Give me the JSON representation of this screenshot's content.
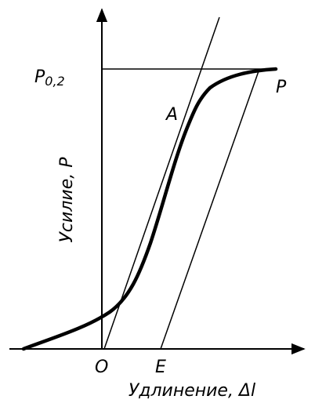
{
  "labels": {
    "yield_level": {
      "text": "P",
      "subscript": "0,2"
    },
    "point_a": "A",
    "point_p": "P",
    "origin": "O",
    "point_e": "E",
    "y_axis": "Усилие, P",
    "x_axis": "Удлинение, Δl"
  }
}
